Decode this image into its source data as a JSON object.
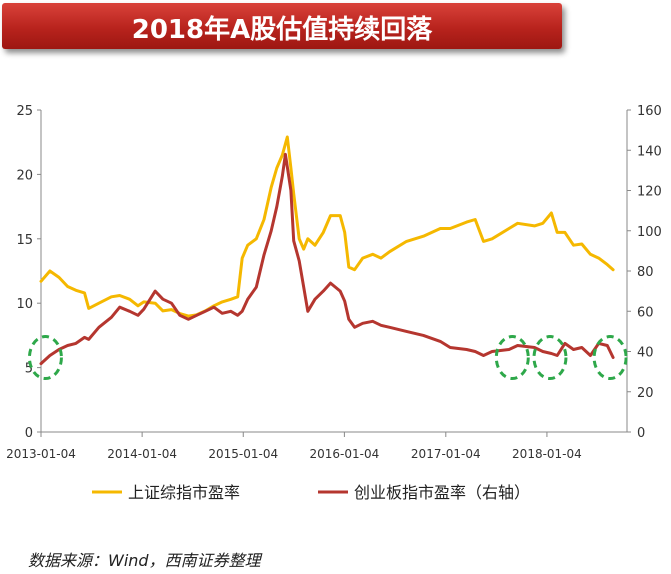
{
  "header": {
    "title": "2018年A股估值持续回落"
  },
  "source": "数据来源：Wind，西南证券整理",
  "chart_data": {
    "type": "line",
    "x_ticks": [
      "2013-01-04",
      "2014-01-04",
      "2015-01-04",
      "2016-01-04",
      "2017-01-04",
      "2018-01-04"
    ],
    "y_left": {
      "range": [
        0,
        25
      ],
      "ticks": [
        "0",
        "5",
        "10",
        "15",
        "20",
        "25"
      ]
    },
    "y_right": {
      "range": [
        0,
        160
      ],
      "ticks": [
        "0",
        "20",
        "40",
        "60",
        "80",
        "100",
        "120",
        "140",
        "160"
      ]
    },
    "legend_position": "bottom",
    "grid": false,
    "series": [
      {
        "name": "上证综指市盈率",
        "axis": "left",
        "color": "#f5b800",
        "points": [
          [
            "2013-01-04",
            11.7
          ],
          [
            "2013-02-05",
            12.5
          ],
          [
            "2013-03-10",
            12.0
          ],
          [
            "2013-04-10",
            11.3
          ],
          [
            "2013-05-10",
            11.0
          ],
          [
            "2013-06-10",
            10.8
          ],
          [
            "2013-06-25",
            9.6
          ],
          [
            "2013-08-01",
            10.0
          ],
          [
            "2013-09-15",
            10.5
          ],
          [
            "2013-10-15",
            10.6
          ],
          [
            "2013-11-20",
            10.3
          ],
          [
            "2013-12-20",
            9.8
          ],
          [
            "2014-01-10",
            10.1
          ],
          [
            "2014-02-20",
            10.0
          ],
          [
            "2014-03-20",
            9.4
          ],
          [
            "2014-04-20",
            9.5
          ],
          [
            "2014-05-20",
            9.2
          ],
          [
            "2014-06-20",
            9.0
          ],
          [
            "2014-07-20",
            9.1
          ],
          [
            "2014-08-20",
            9.4
          ],
          [
            "2014-09-20",
            9.8
          ],
          [
            "2014-10-20",
            10.1
          ],
          [
            "2014-11-20",
            10.3
          ],
          [
            "2014-12-15",
            10.5
          ],
          [
            "2014-12-31",
            13.5
          ],
          [
            "2015-01-20",
            14.5
          ],
          [
            "2015-02-20",
            15.0
          ],
          [
            "2015-03-20",
            16.5
          ],
          [
            "2015-04-15",
            19.0
          ],
          [
            "2015-05-05",
            20.5
          ],
          [
            "2015-05-25",
            21.5
          ],
          [
            "2015-06-12",
            22.9
          ],
          [
            "2015-06-25",
            20.5
          ],
          [
            "2015-07-05",
            18.5
          ],
          [
            "2015-07-25",
            15.0
          ],
          [
            "2015-08-10",
            14.2
          ],
          [
            "2015-08-25",
            15.0
          ],
          [
            "2015-09-20",
            14.5
          ],
          [
            "2015-10-20",
            15.5
          ],
          [
            "2015-11-15",
            16.8
          ],
          [
            "2015-12-20",
            16.8
          ],
          [
            "2016-01-05",
            15.5
          ],
          [
            "2016-01-20",
            12.8
          ],
          [
            "2016-02-10",
            12.6
          ],
          [
            "2016-03-10",
            13.5
          ],
          [
            "2016-04-15",
            13.8
          ],
          [
            "2016-05-15",
            13.5
          ],
          [
            "2016-06-15",
            14.0
          ],
          [
            "2016-08-15",
            14.8
          ],
          [
            "2016-10-15",
            15.2
          ],
          [
            "2016-12-15",
            15.8
          ],
          [
            "2017-01-20",
            15.8
          ],
          [
            "2017-03-20",
            16.3
          ],
          [
            "2017-04-20",
            16.5
          ],
          [
            "2017-05-20",
            14.8
          ],
          [
            "2017-06-20",
            15.0
          ],
          [
            "2017-08-20",
            15.8
          ],
          [
            "2017-09-20",
            16.2
          ],
          [
            "2017-11-20",
            16.0
          ],
          [
            "2017-12-20",
            16.2
          ],
          [
            "2018-01-20",
            17.0
          ],
          [
            "2018-02-10",
            15.5
          ],
          [
            "2018-03-10",
            15.5
          ],
          [
            "2018-04-10",
            14.5
          ],
          [
            "2018-05-10",
            14.6
          ],
          [
            "2018-06-10",
            13.8
          ],
          [
            "2018-07-10",
            13.5
          ],
          [
            "2018-08-10",
            13.0
          ],
          [
            "2018-08-31",
            12.6
          ]
        ]
      },
      {
        "name": "创业板指市盈率（右轴）",
        "axis": "right",
        "color": "#b5362f",
        "points": [
          [
            "2013-01-04",
            34
          ],
          [
            "2013-02-05",
            38
          ],
          [
            "2013-03-10",
            41
          ],
          [
            "2013-04-10",
            43
          ],
          [
            "2013-05-10",
            44
          ],
          [
            "2013-06-10",
            47
          ],
          [
            "2013-06-25",
            46
          ],
          [
            "2013-08-01",
            52
          ],
          [
            "2013-09-15",
            57
          ],
          [
            "2013-10-15",
            62
          ],
          [
            "2013-11-20",
            60
          ],
          [
            "2013-12-20",
            58
          ],
          [
            "2014-01-10",
            61
          ],
          [
            "2014-02-20",
            70
          ],
          [
            "2014-03-20",
            66
          ],
          [
            "2014-04-20",
            64
          ],
          [
            "2014-05-20",
            58
          ],
          [
            "2014-06-20",
            56
          ],
          [
            "2014-07-20",
            58
          ],
          [
            "2014-08-20",
            60
          ],
          [
            "2014-09-20",
            62
          ],
          [
            "2014-10-20",
            59
          ],
          [
            "2014-11-20",
            60
          ],
          [
            "2014-12-15",
            58
          ],
          [
            "2014-12-31",
            60
          ],
          [
            "2015-01-20",
            66
          ],
          [
            "2015-02-20",
            72
          ],
          [
            "2015-03-20",
            88
          ],
          [
            "2015-04-15",
            100
          ],
          [
            "2015-05-05",
            112
          ],
          [
            "2015-05-25",
            127
          ],
          [
            "2015-06-05",
            138
          ],
          [
            "2015-06-25",
            120
          ],
          [
            "2015-07-05",
            95
          ],
          [
            "2015-07-25",
            85
          ],
          [
            "2015-08-10",
            72
          ],
          [
            "2015-08-25",
            60
          ],
          [
            "2015-09-20",
            66
          ],
          [
            "2015-10-20",
            70
          ],
          [
            "2015-11-15",
            74
          ],
          [
            "2015-12-20",
            70
          ],
          [
            "2016-01-05",
            65
          ],
          [
            "2016-01-20",
            56
          ],
          [
            "2016-02-10",
            52
          ],
          [
            "2016-03-10",
            54
          ],
          [
            "2016-04-15",
            55
          ],
          [
            "2016-05-15",
            53
          ],
          [
            "2016-06-15",
            52
          ],
          [
            "2016-08-15",
            50
          ],
          [
            "2016-10-15",
            48
          ],
          [
            "2016-12-15",
            45
          ],
          [
            "2017-01-20",
            42
          ],
          [
            "2017-03-20",
            41
          ],
          [
            "2017-04-20",
            40
          ],
          [
            "2017-05-20",
            38
          ],
          [
            "2017-06-20",
            40
          ],
          [
            "2017-08-20",
            41
          ],
          [
            "2017-09-20",
            43
          ],
          [
            "2017-11-20",
            42
          ],
          [
            "2017-12-20",
            40
          ],
          [
            "2018-01-20",
            39
          ],
          [
            "2018-02-10",
            38
          ],
          [
            "2018-03-10",
            44
          ],
          [
            "2018-04-10",
            41
          ],
          [
            "2018-05-10",
            42
          ],
          [
            "2018-06-10",
            38
          ],
          [
            "2018-07-10",
            44
          ],
          [
            "2018-08-10",
            43
          ],
          [
            "2018-08-31",
            37
          ]
        ]
      }
    ],
    "annotations": [
      {
        "type": "dashed-circle",
        "color": "#2ea84a",
        "at": [
          "2013-01-20",
          37
        ]
      },
      {
        "type": "dashed-circle",
        "color": "#2ea84a",
        "at": [
          "2017-09-01",
          37
        ]
      },
      {
        "type": "dashed-circle",
        "color": "#2ea84a",
        "at": [
          "2018-01-15",
          37
        ]
      },
      {
        "type": "dashed-circle",
        "color": "#2ea84a",
        "at": [
          "2018-08-20",
          37
        ]
      }
    ]
  }
}
